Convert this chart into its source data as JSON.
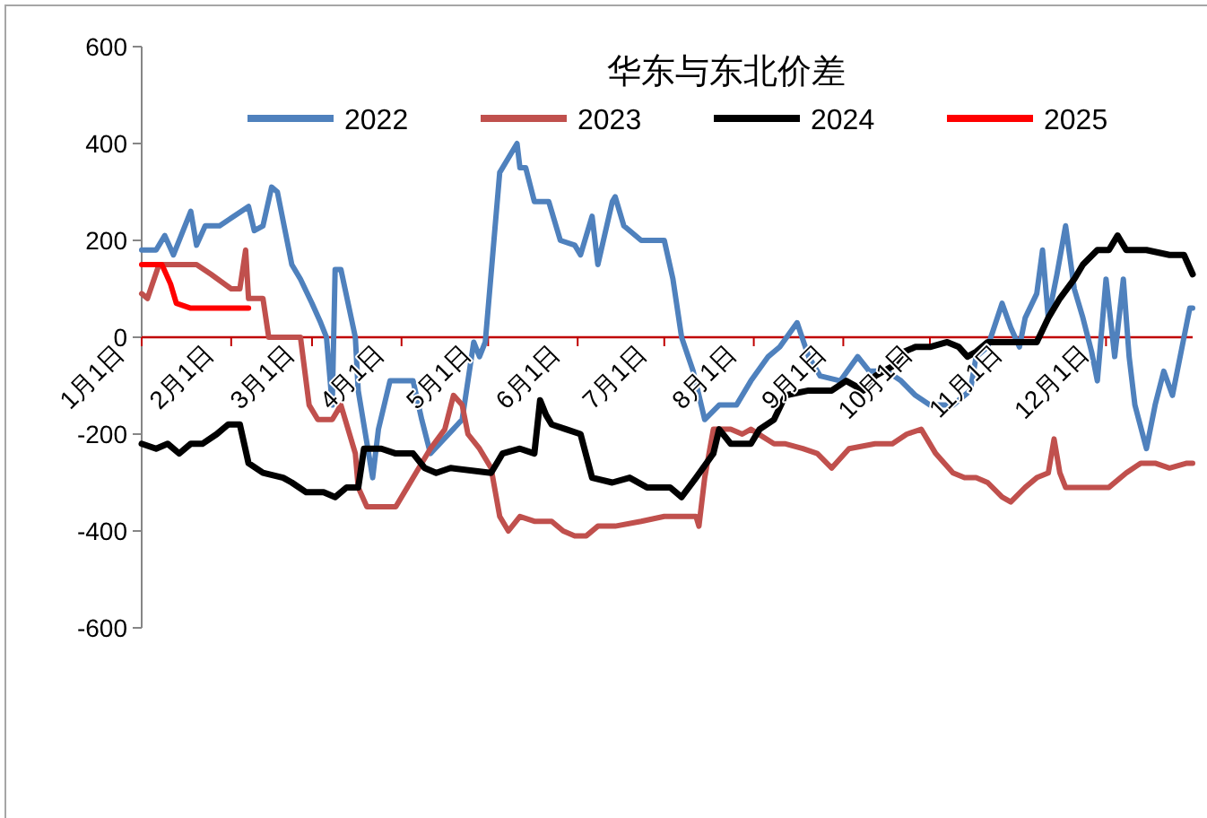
{
  "chart_data": {
    "type": "line",
    "title": "华东与东北价差",
    "legend": "top",
    "xlim": [
      "--01-01",
      "--12-31"
    ],
    "xticks": [
      {
        "value": "--01-01",
        "label": "1月1日"
      },
      {
        "value": "--02-01",
        "label": "2月1日"
      },
      {
        "value": "--03-01",
        "label": "3月1日"
      },
      {
        "value": "--04-01",
        "label": "4月1日"
      },
      {
        "value": "--05-01",
        "label": "5月1日"
      },
      {
        "value": "--06-01",
        "label": "6月1日"
      },
      {
        "value": "--07-01",
        "label": "7月1日"
      },
      {
        "value": "--08-01",
        "label": "8月1日"
      },
      {
        "value": "--09-01",
        "label": "9月1日"
      },
      {
        "value": "--10-01",
        "label": "10月1日"
      },
      {
        "value": "--11-01",
        "label": "11月1日"
      },
      {
        "value": "--12-01",
        "label": "12月1日"
      }
    ],
    "ylim": [
      -600,
      600
    ],
    "yticks": [
      -600,
      -400,
      -200,
      0,
      200,
      400,
      600
    ],
    "grid": false,
    "series": [
      {
        "name": "2022",
        "color": "#4f81bd",
        "x": [
          "--01-01",
          "--01-06",
          "--01-09",
          "--01-12",
          "--01-18",
          "--01-20",
          "--01-23",
          "--01-28",
          "--02-07",
          "--02-09",
          "--02-12",
          "--02-15",
          "--02-17",
          "--02-22",
          "--02-25",
          "--03-01",
          "--03-04",
          "--03-06",
          "--03-08",
          "--03-09",
          "--03-11",
          "--03-16",
          "--03-17",
          "--03-22",
          "--03-24",
          "--03-28",
          "--04-05",
          "--04-08",
          "--04-11",
          "--04-22",
          "--04-26",
          "--04-28",
          "--04-30",
          "--05-05",
          "--05-11",
          "--05-12",
          "--05-14",
          "--05-17",
          "--05-22",
          "--05-26",
          "--05-31",
          "--06-02",
          "--06-06",
          "--06-08",
          "--06-13",
          "--06-14",
          "--06-17",
          "--06-23",
          "--06-26",
          "--07-01",
          "--07-04",
          "--07-07",
          "--07-11",
          "--07-15",
          "--07-20",
          "--07-26",
          "--07-31",
          "--08-06",
          "--08-10",
          "--08-16",
          "--08-20",
          "--08-24",
          "--08-31",
          "--09-06",
          "--09-10",
          "--09-16",
          "--09-21",
          "--09-26",
          "--10-01",
          "--10-09",
          "--10-15",
          "--10-17",
          "--10-21",
          "--10-26",
          "--10-29",
          "--11-01",
          "--11-03",
          "--11-07",
          "--11-09",
          "--11-11",
          "--11-14",
          "--11-17",
          "--11-20",
          "--11-23",
          "--11-26",
          "--11-28",
          "--12-01",
          "--12-04",
          "--12-07",
          "--12-09",
          "--12-11",
          "--12-15",
          "--12-18",
          "--12-21",
          "--12-24",
          "--12-28",
          "--12-30",
          "--12-31"
        ],
        "values": [
          180,
          180,
          210,
          170,
          260,
          190,
          230,
          230,
          270,
          220,
          230,
          310,
          300,
          150,
          120,
          70,
          30,
          0,
          -140,
          140,
          140,
          0,
          -110,
          -290,
          -190,
          -90,
          -90,
          -170,
          -240,
          -170,
          -10,
          -40,
          -10,
          340,
          400,
          350,
          350,
          280,
          280,
          200,
          190,
          170,
          250,
          150,
          280,
          290,
          230,
          200,
          200,
          200,
          120,
          0,
          -70,
          -170,
          -140,
          -140,
          -90,
          -40,
          -20,
          30,
          -40,
          -80,
          -90,
          -40,
          -70,
          -70,
          -90,
          -120,
          -140,
          -140,
          -110,
          -40,
          -20,
          70,
          20,
          -20,
          40,
          90,
          180,
          40,
          130,
          230,
          100,
          40,
          -30,
          -90,
          120,
          -40,
          120,
          -40,
          -140,
          -230,
          -140,
          -70,
          -120,
          0,
          60,
          60
        ]
      },
      {
        "name": "2023",
        "color": "#c0504d",
        "x": [
          "--01-01",
          "--01-03",
          "--01-07",
          "--01-20",
          "--01-25",
          "--02-01",
          "--02-04",
          "--02-06",
          "--02-07",
          "--02-12",
          "--02-14",
          "--02-25",
          "--02-28",
          "--03-03",
          "--03-08",
          "--03-11",
          "--03-16",
          "--03-17",
          "--03-20",
          "--03-30",
          "--04-03",
          "--04-07",
          "--04-11",
          "--04-16",
          "--04-19",
          "--04-22",
          "--04-24",
          "--04-28",
          "--05-02",
          "--05-05",
          "--05-08",
          "--05-12",
          "--05-17",
          "--05-23",
          "--05-27",
          "--05-31",
          "--06-04",
          "--06-08",
          "--06-14",
          "--06-23",
          "--07-01",
          "--07-12",
          "--07-13",
          "--07-15",
          "--07-18",
          "--07-24",
          "--07-28",
          "--07-31",
          "--08-08",
          "--08-12",
          "--08-18",
          "--08-23",
          "--08-28",
          "--09-03",
          "--09-12",
          "--09-18",
          "--09-23",
          "--09-28",
          "--10-03",
          "--10-09",
          "--10-13",
          "--10-17",
          "--10-21",
          "--10-26",
          "--10-29",
          "--11-03",
          "--11-07",
          "--11-11",
          "--11-13",
          "--11-15",
          "--11-17",
          "--11-22",
          "--12-02",
          "--12-08",
          "--12-13",
          "--12-18",
          "--12-23",
          "--12-29",
          "--12-31"
        ],
        "values": [
          90,
          80,
          150,
          150,
          130,
          100,
          100,
          180,
          80,
          80,
          0,
          0,
          -140,
          -170,
          -170,
          -140,
          -240,
          -310,
          -350,
          -350,
          -310,
          -270,
          -230,
          -190,
          -120,
          -140,
          -200,
          -230,
          -270,
          -370,
          -400,
          -370,
          -380,
          -380,
          -400,
          -410,
          -410,
          -390,
          -390,
          -380,
          -370,
          -370,
          -390,
          -290,
          -190,
          -190,
          -200,
          -190,
          -220,
          -220,
          -230,
          -240,
          -270,
          -230,
          -220,
          -220,
          -200,
          -190,
          -240,
          -280,
          -290,
          -290,
          -300,
          -330,
          -340,
          -310,
          -290,
          -280,
          -210,
          -280,
          -310,
          -310,
          -310,
          -280,
          -260,
          -260,
          -270,
          -260,
          -260
        ]
      },
      {
        "name": "2024",
        "color": "#000000",
        "x": [
          "--01-01",
          "--01-06",
          "--01-10",
          "--01-14",
          "--01-18",
          "--01-22",
          "--01-27",
          "--01-31",
          "--02-04",
          "--02-07",
          "--02-12",
          "--02-19",
          "--02-22",
          "--02-27",
          "--03-05",
          "--03-09",
          "--03-13",
          "--03-17",
          "--03-19",
          "--03-25",
          "--03-30",
          "--04-05",
          "--04-09",
          "--04-13",
          "--04-18",
          "--05-02",
          "--05-06",
          "--05-12",
          "--05-17",
          "--05-19",
          "--05-21",
          "--05-23",
          "--05-28",
          "--06-02",
          "--06-06",
          "--06-13",
          "--06-19",
          "--06-25",
          "--07-03",
          "--07-07",
          "--07-12",
          "--07-18",
          "--07-20",
          "--07-24",
          "--07-31",
          "--08-03",
          "--08-08",
          "--08-12",
          "--08-20",
          "--08-28",
          "--09-02",
          "--09-08",
          "--09-12",
          "--09-18",
          "--09-22",
          "--09-26",
          "--10-01",
          "--10-07",
          "--10-11",
          "--10-14",
          "--10-17",
          "--10-21",
          "--11-07",
          "--11-11",
          "--11-15",
          "--11-20",
          "--11-23",
          "--11-28",
          "--12-02",
          "--12-05",
          "--12-08",
          "--12-15",
          "--12-23",
          "--12-28",
          "--12-31"
        ],
        "values": [
          -220,
          -230,
          -220,
          -240,
          -220,
          -220,
          -200,
          -180,
          -180,
          -260,
          -280,
          -290,
          -300,
          -320,
          -320,
          -330,
          -310,
          -310,
          -230,
          -230,
          -240,
          -240,
          -270,
          -280,
          -270,
          -280,
          -240,
          -230,
          -240,
          -130,
          -160,
          -180,
          -190,
          -200,
          -290,
          -300,
          -290,
          -310,
          -310,
          -330,
          -290,
          -240,
          -190,
          -220,
          -220,
          -190,
          -170,
          -120,
          -110,
          -110,
          -90,
          -110,
          -80,
          -60,
          -30,
          -20,
          -20,
          -10,
          -20,
          -40,
          -30,
          -10,
          -10,
          40,
          80,
          120,
          150,
          180,
          180,
          210,
          180,
          180,
          170,
          170,
          130
        ]
      },
      {
        "name": "2025",
        "color": "#ff0000",
        "x": [
          "--01-01",
          "--01-08",
          "--01-11",
          "--01-13",
          "--01-18",
          "--02-07"
        ],
        "values": [
          150,
          150,
          110,
          70,
          60,
          60
        ]
      }
    ]
  }
}
